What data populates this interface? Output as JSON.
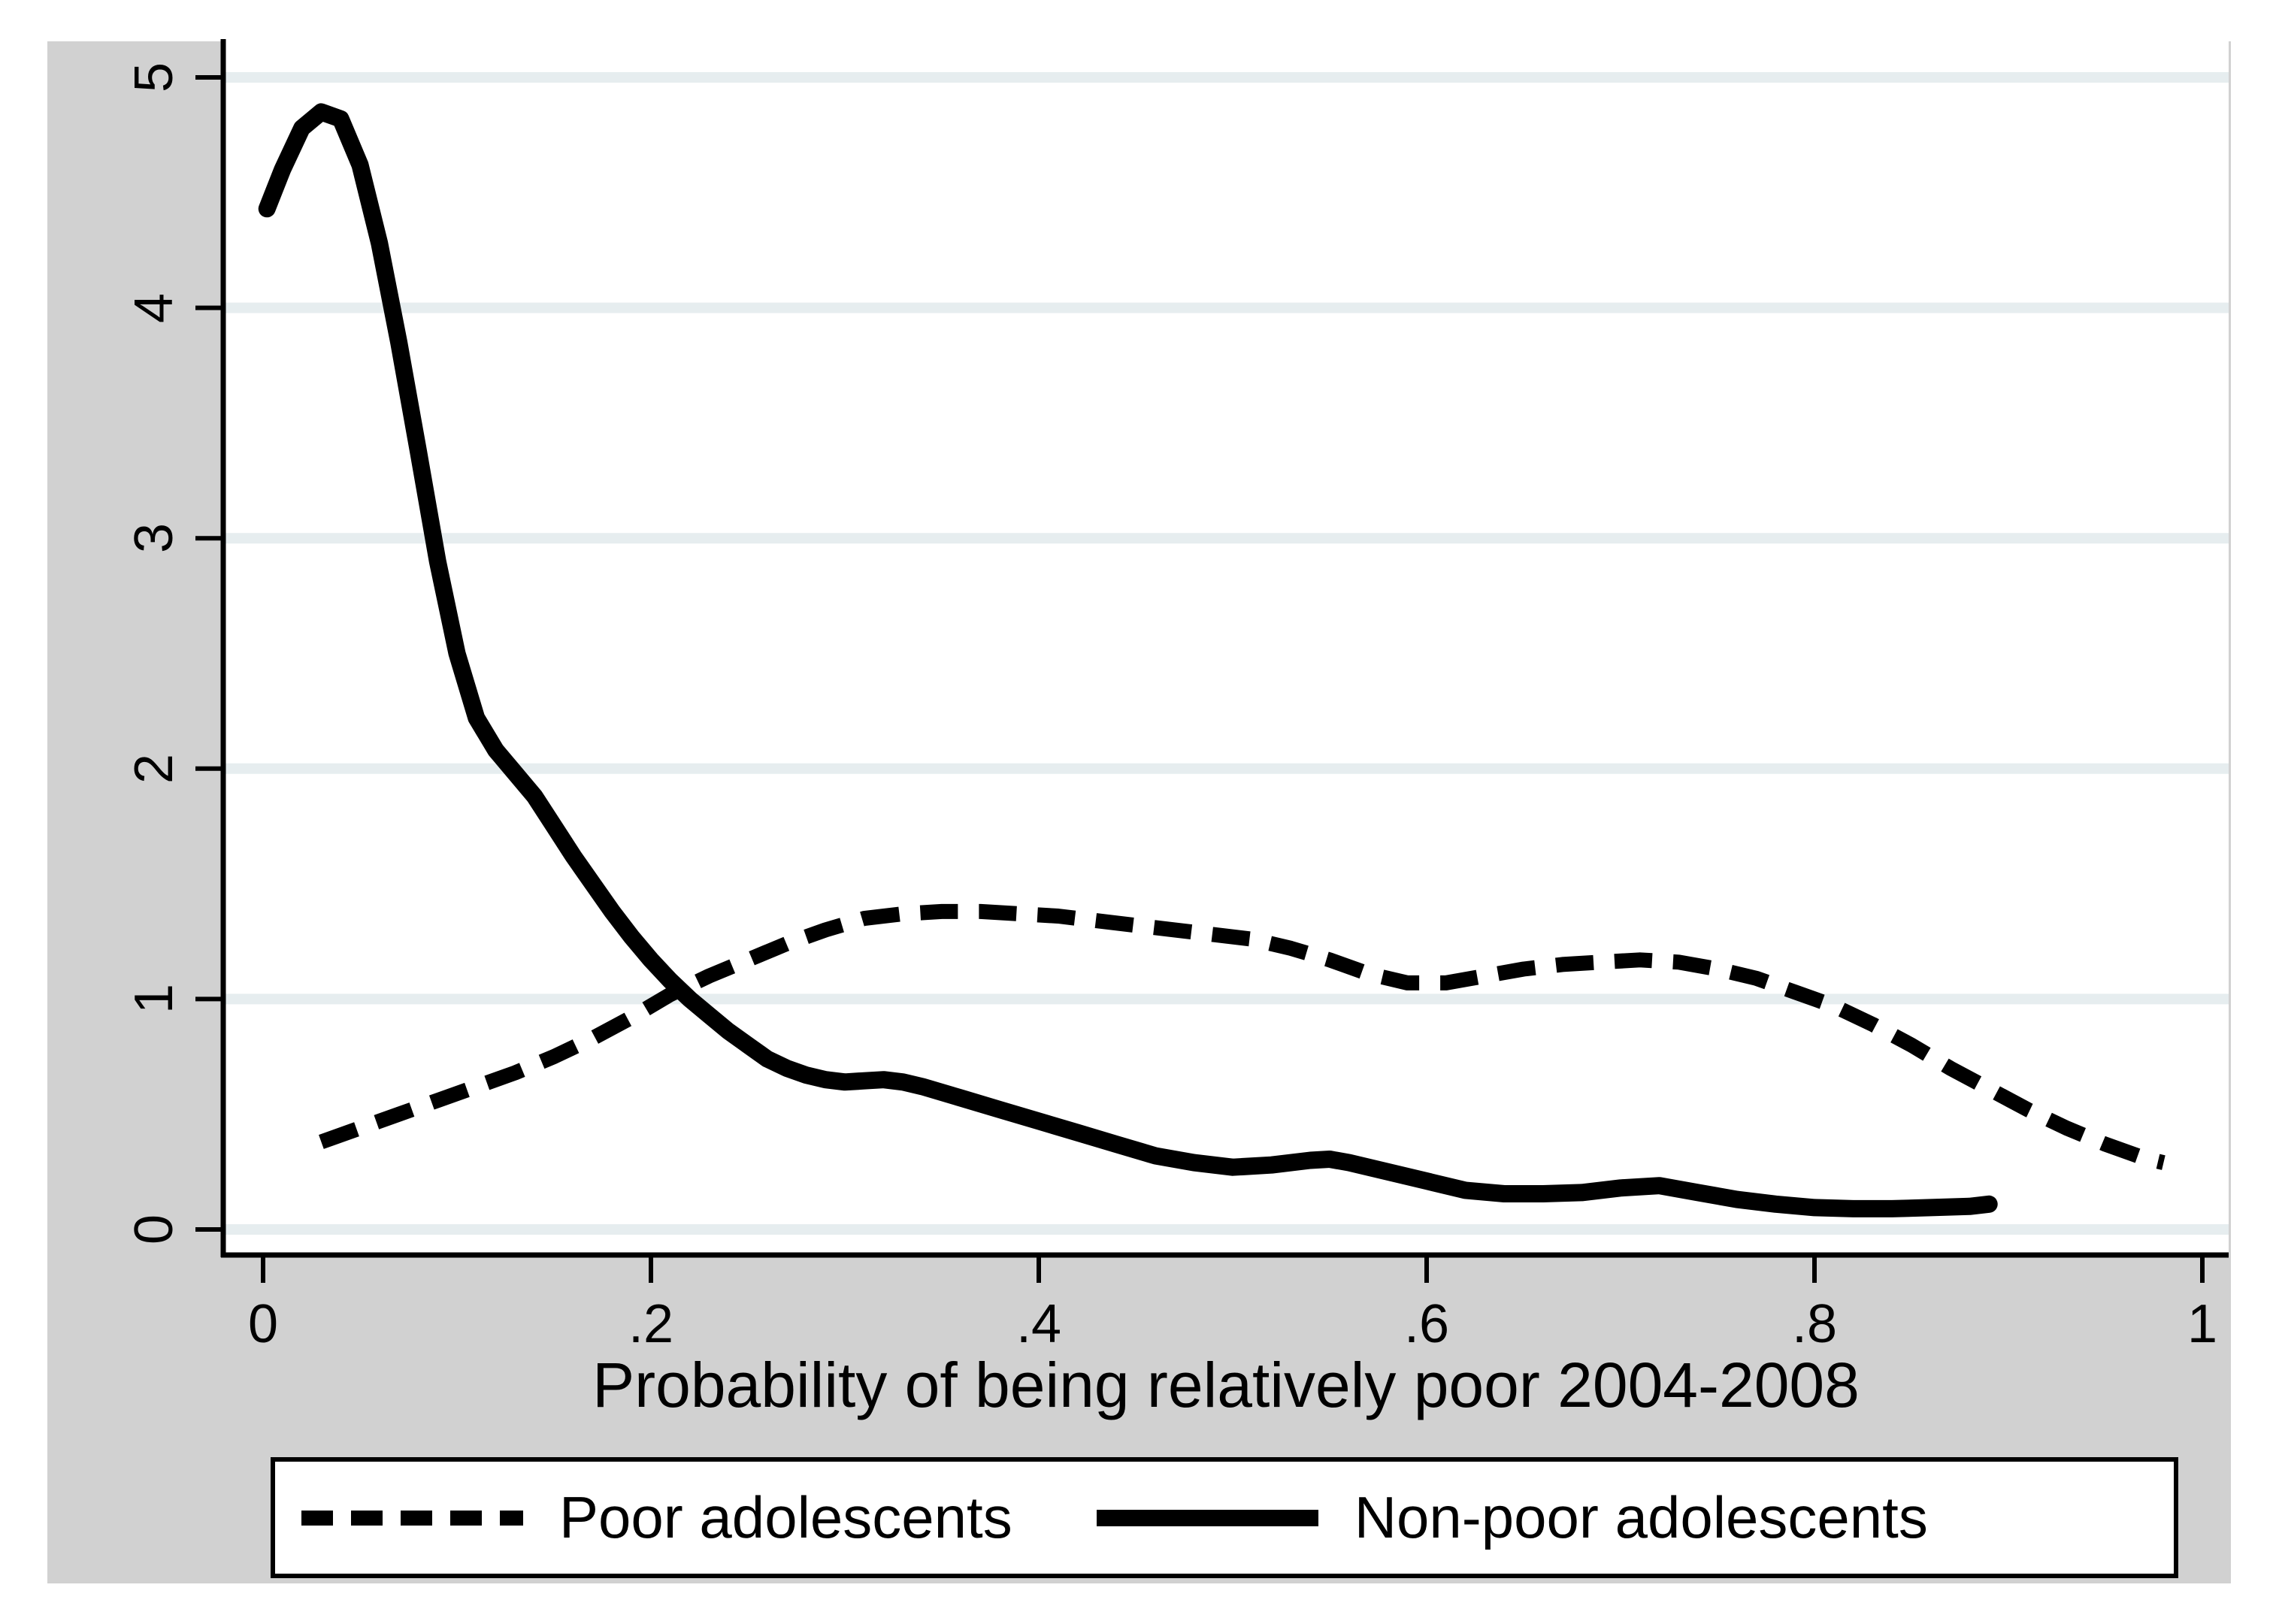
{
  "figure": {
    "background": "#ffffff",
    "canvas_color": "#d1d1d1",
    "plot_color": "#ffffff",
    "gridline_color": "#e6edef",
    "axis_color": "#000000",
    "line_color": "#000000"
  },
  "chart_data": {
    "type": "line",
    "title": "",
    "xlabel": "Probability of being relatively poor 2004-2008",
    "ylabel": "",
    "xlim": [
      0,
      1
    ],
    "ylim": [
      0,
      5
    ],
    "grid": true,
    "legend_position": "bottom",
    "x_ticks": [
      "0",
      ".2",
      ".4",
      ".6",
      ".8",
      "1"
    ],
    "x_tick_values": [
      0,
      0.2,
      0.4,
      0.6,
      0.8,
      1
    ],
    "y_ticks": [
      "0",
      "1",
      "2",
      "3",
      "4",
      "5"
    ],
    "y_tick_values": [
      0,
      1,
      2,
      3,
      4,
      5
    ],
    "series": [
      {
        "name": "Poor adolescents",
        "style": "dashed",
        "x": [
          0.03,
          0.05,
          0.07,
          0.09,
          0.11,
          0.13,
          0.15,
          0.17,
          0.19,
          0.21,
          0.23,
          0.25,
          0.27,
          0.29,
          0.31,
          0.33,
          0.35,
          0.37,
          0.39,
          0.41,
          0.43,
          0.45,
          0.47,
          0.49,
          0.51,
          0.53,
          0.55,
          0.57,
          0.59,
          0.61,
          0.63,
          0.65,
          0.67,
          0.69,
          0.71,
          0.73,
          0.75,
          0.77,
          0.79,
          0.81,
          0.83,
          0.85,
          0.87,
          0.89,
          0.91,
          0.93,
          0.95,
          0.97,
          0.98
        ],
        "y": [
          0.38,
          0.44,
          0.5,
          0.56,
          0.62,
          0.68,
          0.75,
          0.83,
          0.92,
          1.02,
          1.1,
          1.17,
          1.24,
          1.3,
          1.35,
          1.37,
          1.38,
          1.38,
          1.37,
          1.36,
          1.34,
          1.32,
          1.3,
          1.28,
          1.26,
          1.22,
          1.17,
          1.11,
          1.07,
          1.07,
          1.1,
          1.13,
          1.15,
          1.16,
          1.17,
          1.16,
          1.13,
          1.09,
          1.03,
          0.97,
          0.89,
          0.8,
          0.7,
          0.61,
          0.52,
          0.44,
          0.37,
          0.31,
          0.29
        ]
      },
      {
        "name": "Non-poor adolescents",
        "style": "solid",
        "x": [
          0.002,
          0.01,
          0.02,
          0.03,
          0.04,
          0.05,
          0.06,
          0.07,
          0.08,
          0.09,
          0.1,
          0.11,
          0.12,
          0.13,
          0.14,
          0.15,
          0.16,
          0.17,
          0.18,
          0.19,
          0.2,
          0.21,
          0.22,
          0.23,
          0.24,
          0.25,
          0.26,
          0.27,
          0.28,
          0.29,
          0.3,
          0.31,
          0.32,
          0.33,
          0.34,
          0.36,
          0.38,
          0.4,
          0.42,
          0.44,
          0.46,
          0.48,
          0.5,
          0.52,
          0.54,
          0.55,
          0.56,
          0.58,
          0.6,
          0.62,
          0.64,
          0.66,
          0.68,
          0.7,
          0.72,
          0.74,
          0.76,
          0.78,
          0.8,
          0.82,
          0.84,
          0.86,
          0.88,
          0.89
        ],
        "y": [
          4.43,
          4.6,
          4.78,
          4.85,
          4.82,
          4.62,
          4.28,
          3.85,
          3.38,
          2.9,
          2.5,
          2.22,
          2.08,
          1.98,
          1.88,
          1.75,
          1.62,
          1.5,
          1.38,
          1.27,
          1.17,
          1.08,
          1.0,
          0.93,
          0.86,
          0.8,
          0.74,
          0.7,
          0.67,
          0.65,
          0.64,
          0.645,
          0.65,
          0.64,
          0.62,
          0.57,
          0.52,
          0.47,
          0.42,
          0.37,
          0.32,
          0.29,
          0.27,
          0.28,
          0.3,
          0.305,
          0.29,
          0.25,
          0.21,
          0.17,
          0.155,
          0.155,
          0.16,
          0.18,
          0.19,
          0.16,
          0.13,
          0.11,
          0.095,
          0.09,
          0.09,
          0.095,
          0.1,
          0.11
        ]
      }
    ]
  },
  "legend": {
    "items": [
      {
        "label": "Poor adolescents",
        "line_style": "dashed"
      },
      {
        "label": "Non-poor adolescents",
        "line_style": "solid"
      }
    ]
  }
}
